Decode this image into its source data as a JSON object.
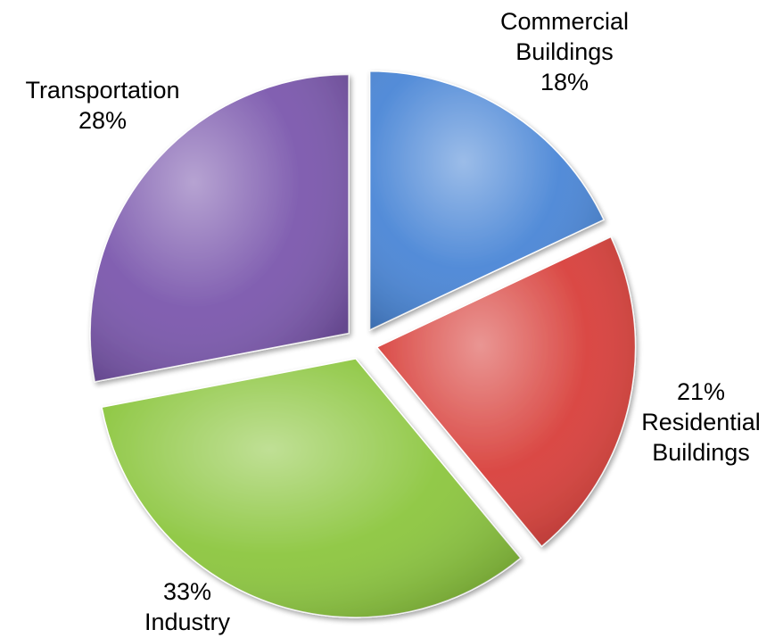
{
  "chart_data": {
    "type": "pie",
    "title": "",
    "exploded": true,
    "start_direction": "top",
    "direction": "clockwise",
    "slices": [
      {
        "name": "Commercial Buildings",
        "label_lines": [
          "Commercial",
          "Buildings",
          "18%"
        ],
        "value": 18,
        "color": "#4a86d6"
      },
      {
        "name": "Residential Buildings",
        "label_lines": [
          "21%",
          "Residential",
          "Buildings"
        ],
        "value": 21,
        "color": "#d8403b"
      },
      {
        "name": "Industry",
        "label_lines": [
          "33%",
          "Industry"
        ],
        "value": 33,
        "color": "#8cc63f"
      },
      {
        "name": "Transportation",
        "label_lines": [
          "Transportation",
          "28%"
        ],
        "value": 28,
        "color": "#7b58ad"
      }
    ]
  }
}
